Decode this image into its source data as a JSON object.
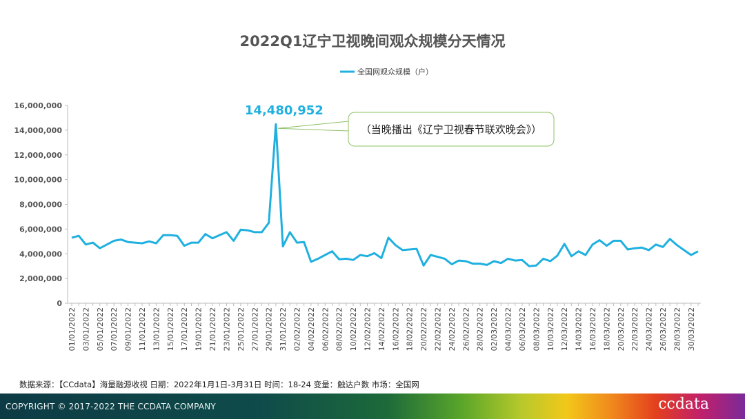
{
  "chart_data": {
    "type": "line",
    "title": "2022Q1辽宁卫视晚间观众规模分天情况",
    "xlabel": "",
    "ylabel": "",
    "ylim": [
      0,
      16000000
    ],
    "yticks": [
      0,
      2000000,
      4000000,
      6000000,
      8000000,
      10000000,
      12000000,
      14000000,
      16000000
    ],
    "ytick_labels": [
      "0",
      "2,000,000",
      "4,000,000",
      "6,000,000",
      "8,000,000",
      "10,000,000",
      "12,000,000",
      "14,000,000",
      "16,000,000"
    ],
    "grid": false,
    "legend_position": "top",
    "xtick_labels": [
      "01/01/2022",
      "03/01/2022",
      "05/01/2022",
      "07/01/2022",
      "09/01/2022",
      "11/01/2022",
      "13/01/2022",
      "15/01/2022",
      "17/01/2022",
      "19/01/2022",
      "21/01/2022",
      "23/01/2022",
      "25/01/2022",
      "27/01/2022",
      "29/01/2022",
      "31/01/2022",
      "02/02/2022",
      "04/02/2022",
      "06/02/2022",
      "08/02/2022",
      "10/02/2022",
      "12/02/2022",
      "14/02/2022",
      "16/02/2022",
      "18/02/2022",
      "20/02/2022",
      "22/02/2022",
      "24/02/2022",
      "26/02/2022",
      "28/02/2022",
      "02/03/2022",
      "04/03/2022",
      "06/03/2022",
      "08/03/2022",
      "10/03/2022",
      "12/03/2022",
      "14/03/2022",
      "16/03/2022",
      "18/03/2022",
      "20/03/2022",
      "22/03/2022",
      "24/03/2022",
      "26/03/2022",
      "28/03/2022",
      "30/03/2022"
    ],
    "x_start": "2022-01-01",
    "x_end": "2022-03-31",
    "series": [
      {
        "name": "全国网观众规模（户）",
        "color": "#1fb0e0",
        "values": [
          5300000,
          5450000,
          4750000,
          4900000,
          4450000,
          4750000,
          5050000,
          5150000,
          4950000,
          4900000,
          4850000,
          5000000,
          4850000,
          5500000,
          5500000,
          5450000,
          4650000,
          4900000,
          4900000,
          5600000,
          5250000,
          5500000,
          5750000,
          5050000,
          5950000,
          5900000,
          5750000,
          5750000,
          6500000,
          14480952,
          4600000,
          5750000,
          4900000,
          4950000,
          3350000,
          3600000,
          3900000,
          4200000,
          3550000,
          3600000,
          3500000,
          3900000,
          3800000,
          4050000,
          3650000,
          5300000,
          4700000,
          4300000,
          4350000,
          4400000,
          3050000,
          3900000,
          3750000,
          3600000,
          3150000,
          3450000,
          3400000,
          3200000,
          3200000,
          3100000,
          3400000,
          3250000,
          3600000,
          3450000,
          3500000,
          3000000,
          3050000,
          3600000,
          3400000,
          3850000,
          4800000,
          3800000,
          4200000,
          3900000,
          4750000,
          5100000,
          4650000,
          5050000,
          5050000,
          4350000,
          4450000,
          4500000,
          4300000,
          4750000,
          4550000,
          5200000,
          4700000,
          4300000,
          3900000,
          4200000
        ]
      }
    ],
    "annotations": [
      {
        "label": "14,480,952",
        "color": "#1fb0e0",
        "x": "2022-01-30",
        "y": 14480952
      },
      {
        "label": "（当晚播出《辽宁卫视春节联欢晚会》）",
        "border_color": "#8cc063"
      }
    ]
  },
  "source_note": "数据来源：【CCdata】海量融源收视 日期：2022年1月1日-3月31日   时间：18-24   变量：触达户数   市场：全国网",
  "footer": {
    "copyright": "COPYRIGHT © 2017-2022 THE CCDATA COMPANY",
    "logo": "ccdata"
  }
}
